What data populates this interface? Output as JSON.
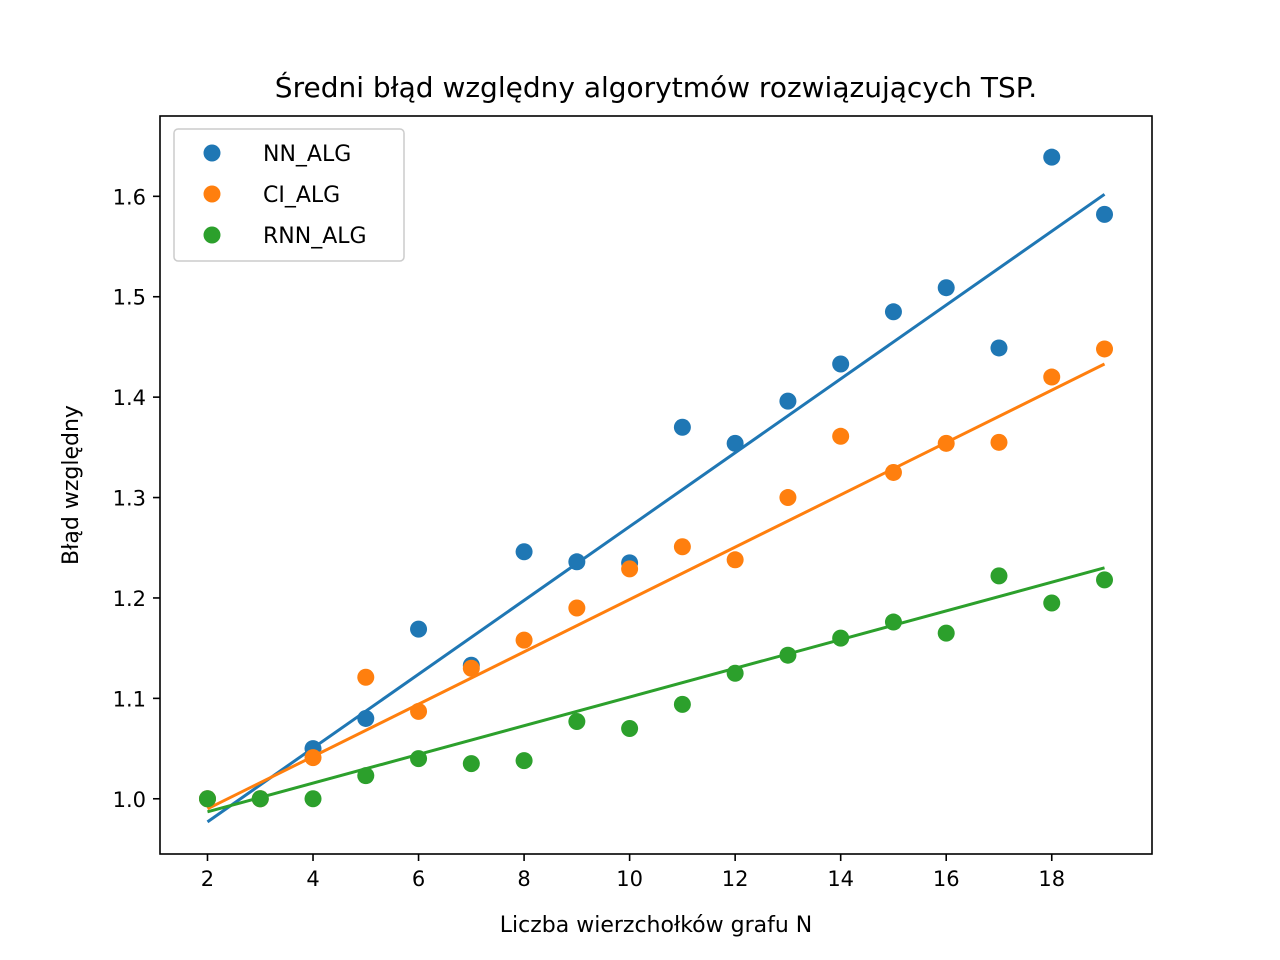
{
  "chart_data": {
    "type": "scatter",
    "title": "Średni błąd względny algorytmów rozwiązujących TSP.",
    "xlabel": "Liczba wierzchołków grafu N",
    "ylabel": "Błąd względny",
    "xlim": [
      1.1,
      19.9
    ],
    "ylim": [
      0.945,
      1.68
    ],
    "xticks": [
      2,
      4,
      6,
      8,
      10,
      12,
      14,
      16,
      18
    ],
    "xtick_labels": [
      "2",
      "4",
      "6",
      "8",
      "10",
      "12",
      "14",
      "16",
      "18"
    ],
    "yticks": [
      1.0,
      1.1,
      1.2,
      1.3,
      1.4,
      1.5,
      1.6
    ],
    "ytick_labels": [
      "1.0",
      "1.1",
      "1.2",
      "1.3",
      "1.4",
      "1.5",
      "1.6"
    ],
    "grid": false,
    "legend_position": "top-left",
    "x": [
      2,
      3,
      4,
      5,
      6,
      7,
      8,
      9,
      10,
      11,
      12,
      13,
      14,
      15,
      16,
      17,
      18,
      19
    ],
    "series": [
      {
        "name": "NN_ALG",
        "color": "#1f77b4",
        "values": [
          1.0,
          1.0,
          1.05,
          1.08,
          1.169,
          1.133,
          1.246,
          1.236,
          1.235,
          1.37,
          1.354,
          1.396,
          1.433,
          1.485,
          1.509,
          1.449,
          1.639,
          1.582
        ],
        "fit": [
          [
            2,
            0.977
          ],
          [
            19,
            1.602
          ]
        ]
      },
      {
        "name": "CI_ALG",
        "color": "#ff7f0e",
        "values": [
          1.0,
          1.0,
          1.041,
          1.121,
          1.087,
          1.13,
          1.158,
          1.19,
          1.229,
          1.251,
          1.238,
          1.3,
          1.361,
          1.325,
          1.354,
          1.355,
          1.42,
          1.448
        ],
        "fit": [
          [
            2,
            0.99
          ],
          [
            19,
            1.433
          ]
        ]
      },
      {
        "name": "RNN_ALG",
        "color": "#2ca02c",
        "values": [
          1.0,
          1.0,
          1.0,
          1.023,
          1.04,
          1.035,
          1.038,
          1.077,
          1.07,
          1.094,
          1.125,
          1.143,
          1.16,
          1.176,
          1.165,
          1.222,
          1.195,
          1.218
        ],
        "fit": [
          [
            2,
            0.987
          ],
          [
            19,
            1.23
          ]
        ]
      }
    ]
  }
}
